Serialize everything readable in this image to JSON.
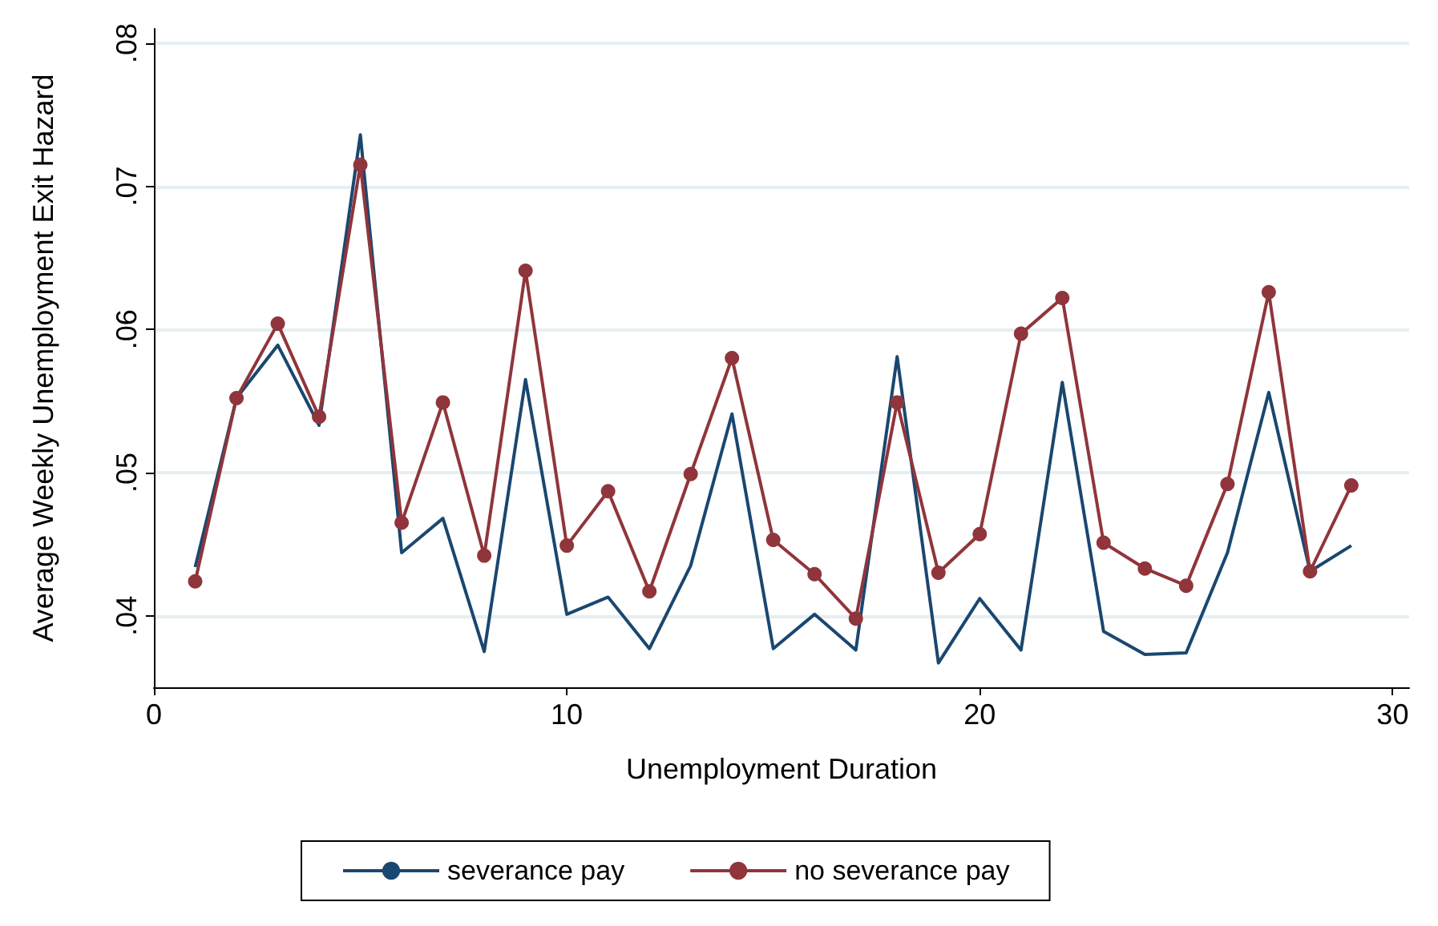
{
  "chart_data": {
    "type": "line",
    "xlabel": "Unemployment Duration",
    "ylabel": "Average Weekly Unemployment Exit Hazard",
    "x": [
      1,
      2,
      3,
      4,
      5,
      6,
      7,
      8,
      9,
      10,
      11,
      12,
      13,
      14,
      15,
      16,
      17,
      18,
      19,
      20,
      21,
      22,
      23,
      24,
      25,
      26,
      27,
      28,
      29
    ],
    "series": [
      {
        "name": "severance pay",
        "color": "#1a476f",
        "marker": "none",
        "values": [
          0.0434,
          0.0552,
          0.0589,
          0.0533,
          0.0736,
          0.0444,
          0.0468,
          0.0375,
          0.0565,
          0.0401,
          0.0413,
          0.0377,
          0.0435,
          0.0541,
          0.0377,
          0.0401,
          0.0376,
          0.0581,
          0.0367,
          0.0412,
          0.0376,
          0.0563,
          0.0389,
          0.0373,
          0.0374,
          0.0444,
          0.0556,
          0.0431,
          0.0449
        ]
      },
      {
        "name": "no severance pay",
        "color": "#90353b",
        "marker": "circle",
        "values": [
          0.0424,
          0.0552,
          0.0604,
          0.0539,
          0.0715,
          0.0465,
          0.0549,
          0.0442,
          0.0641,
          0.0449,
          0.0487,
          0.0417,
          0.0499,
          0.058,
          0.0453,
          0.0429,
          0.0398,
          0.0549,
          0.043,
          0.0457,
          0.0597,
          0.0622,
          0.0451,
          0.0433,
          0.0421,
          0.0492,
          0.0626,
          0.0431,
          0.0491
        ]
      }
    ],
    "xlim": [
      0,
      30.4
    ],
    "xticks": [
      0,
      10,
      20,
      30
    ],
    "ylim": [
      0.035,
      0.081
    ],
    "yticks": [
      {
        "value": 0.04,
        "label": ".04"
      },
      {
        "value": 0.05,
        "label": ".05"
      },
      {
        "value": 0.06,
        "label": ".06"
      },
      {
        "value": 0.07,
        "label": ".07"
      },
      {
        "value": 0.08,
        "label": ".08"
      }
    ],
    "grid": "y",
    "legend": "bottom"
  }
}
